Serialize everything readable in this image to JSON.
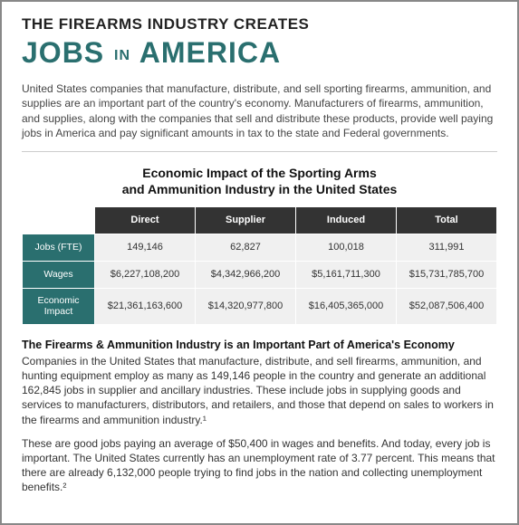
{
  "header": {
    "pretitle": "THE FIREARMS INDUSTRY CREATES",
    "title_jobs": "JOBS",
    "title_in": "IN",
    "title_america": "AMERICA"
  },
  "intro": "United States companies that manufacture, distribute, and sell sporting firearms, ammunition, and supplies are an important part of the country's economy. Manufacturers of firearms, ammunition, and supplies, along with the companies that sell and distribute these products, provide well paying jobs in America and pay significant amounts in tax to the state and Federal governments.",
  "table": {
    "title_line1": "Economic Impact of the Sporting Arms",
    "title_line2": "and Ammunition Industry in the United States",
    "columns": [
      "Direct",
      "Supplier",
      "Induced",
      "Total"
    ],
    "rows": [
      {
        "label": "Jobs (FTE)",
        "cells": [
          "149,146",
          "62,827",
          "100,018",
          "311,991"
        ]
      },
      {
        "label": "Wages",
        "cells": [
          "$6,227,108,200",
          "$4,342,966,200",
          "$5,161,711,300",
          "$15,731,785,700"
        ]
      },
      {
        "label": "Economic Impact",
        "cells": [
          "$21,361,163,600",
          "$14,320,977,800",
          "$16,405,365,000",
          "$52,087,506,400"
        ]
      }
    ],
    "header_bg": "#333333",
    "header_fg": "#ffffff",
    "rowhead_bg": "#2a6f6f",
    "rowhead_fg": "#ffffff",
    "cell_bg": "#f0f0f0"
  },
  "section": {
    "subhead": "The Firearms & Ammunition Industry is an Important Part of America's Economy",
    "para1": "Companies in the United States that manufacture, distribute, and sell firearms, ammunition, and hunting equipment employ as many as 149,146 people in the country and generate an additional 162,845 jobs in supplier and ancillary industries. These include jobs in supplying goods and services to manufacturers, distributors, and retailers, and those that depend on sales to workers in the firearms and ammunition industry.¹",
    "para2": "These are good jobs paying an average of $50,400 in wages and benefits. And today, every job is important. The United States currently has an unemployment rate of 3.77 percent. This means that there are already 6,132,000 people trying to find jobs in the nation and collecting unemployment benefits.²"
  },
  "colors": {
    "accent": "#2a6f6f",
    "text": "#333333",
    "rule": "#cccccc"
  }
}
